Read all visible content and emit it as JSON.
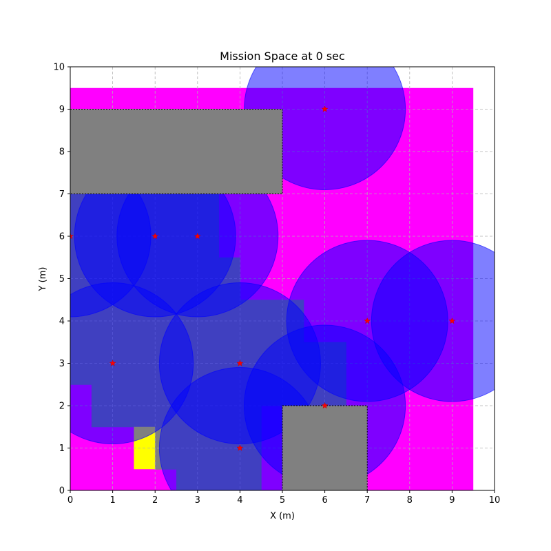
{
  "chart_data": {
    "type": "heatmap",
    "title": "Mission Space at 0 sec",
    "xlabel": "X (m)",
    "ylabel": "Y (m)",
    "xlim": [
      0,
      10
    ],
    "ylim": [
      0,
      10
    ],
    "xticks": [
      0,
      1,
      2,
      3,
      4,
      5,
      6,
      7,
      8,
      9,
      10
    ],
    "yticks": [
      0,
      1,
      2,
      3,
      4,
      5,
      6,
      7,
      8,
      9,
      10
    ],
    "grid": true,
    "cell_size": 0.5,
    "colors": {
      "unexplored": "#ff00ff",
      "explored": "#808080",
      "target_cell": "#ffff00",
      "sensing_circle": "#0000ff",
      "agent_marker": "#ff0000",
      "obstacle": "#808080"
    },
    "mission_space": {
      "x": [
        0,
        9.5
      ],
      "y": [
        0,
        9.5
      ]
    },
    "explored_cells": [
      [
        0,
        6.5
      ],
      [
        0.5,
        6.5
      ],
      [
        1,
        6.5
      ],
      [
        1.5,
        6.5
      ],
      [
        2,
        6.5
      ],
      [
        2.5,
        6.5
      ],
      [
        3,
        6.5
      ],
      [
        0,
        6
      ],
      [
        0.5,
        6
      ],
      [
        1,
        6
      ],
      [
        1.5,
        6
      ],
      [
        2,
        6
      ],
      [
        2.5,
        6
      ],
      [
        3,
        6
      ],
      [
        0,
        5.5
      ],
      [
        0.5,
        5.5
      ],
      [
        1,
        5.5
      ],
      [
        1.5,
        5.5
      ],
      [
        2,
        5.5
      ],
      [
        2.5,
        5.5
      ],
      [
        3,
        5.5
      ],
      [
        0,
        5
      ],
      [
        0.5,
        5
      ],
      [
        1,
        5
      ],
      [
        1.5,
        5
      ],
      [
        2,
        5
      ],
      [
        2.5,
        5
      ],
      [
        3,
        5
      ],
      [
        3.5,
        5
      ],
      [
        0,
        4.5
      ],
      [
        0.5,
        4.5
      ],
      [
        1,
        4.5
      ],
      [
        1.5,
        4.5
      ],
      [
        2,
        4.5
      ],
      [
        2.5,
        4.5
      ],
      [
        3,
        4.5
      ],
      [
        3.5,
        4.5
      ],
      [
        0,
        4
      ],
      [
        0.5,
        4
      ],
      [
        1,
        4
      ],
      [
        1.5,
        4
      ],
      [
        2,
        4
      ],
      [
        2.5,
        4
      ],
      [
        3,
        4
      ],
      [
        3.5,
        4
      ],
      [
        4,
        4
      ],
      [
        4.5,
        4
      ],
      [
        5,
        4
      ],
      [
        0,
        3.5
      ],
      [
        0.5,
        3.5
      ],
      [
        1,
        3.5
      ],
      [
        1.5,
        3.5
      ],
      [
        2,
        3.5
      ],
      [
        2.5,
        3.5
      ],
      [
        3,
        3.5
      ],
      [
        3.5,
        3.5
      ],
      [
        4,
        3.5
      ],
      [
        4.5,
        3.5
      ],
      [
        5,
        3.5
      ],
      [
        0,
        3
      ],
      [
        0.5,
        3
      ],
      [
        1,
        3
      ],
      [
        1.5,
        3
      ],
      [
        2,
        3
      ],
      [
        2.5,
        3
      ],
      [
        3,
        3
      ],
      [
        3.5,
        3
      ],
      [
        4,
        3
      ],
      [
        4.5,
        3
      ],
      [
        5,
        3
      ],
      [
        5.5,
        3
      ],
      [
        6,
        3
      ],
      [
        0,
        2.5
      ],
      [
        0.5,
        2.5
      ],
      [
        1,
        2.5
      ],
      [
        1.5,
        2.5
      ],
      [
        2,
        2.5
      ],
      [
        2.5,
        2.5
      ],
      [
        3,
        2.5
      ],
      [
        3.5,
        2.5
      ],
      [
        4,
        2.5
      ],
      [
        4.5,
        2.5
      ],
      [
        5,
        2.5
      ],
      [
        5.5,
        2.5
      ],
      [
        6,
        2.5
      ],
      [
        0.5,
        2
      ],
      [
        1,
        2
      ],
      [
        1.5,
        2
      ],
      [
        2,
        2
      ],
      [
        2.5,
        2
      ],
      [
        3,
        2
      ],
      [
        3.5,
        2
      ],
      [
        4,
        2
      ],
      [
        4.5,
        2
      ],
      [
        5,
        2
      ],
      [
        5.5,
        2
      ],
      [
        6,
        2
      ],
      [
        0.5,
        1.5
      ],
      [
        1,
        1.5
      ],
      [
        1.5,
        1.5
      ],
      [
        2,
        1.5
      ],
      [
        2.5,
        1.5
      ],
      [
        3,
        1.5
      ],
      [
        3.5,
        1.5
      ],
      [
        4,
        1.5
      ],
      [
        1.5,
        1
      ],
      [
        2,
        1
      ],
      [
        2.5,
        1
      ],
      [
        3,
        1
      ],
      [
        3.5,
        1
      ],
      [
        4,
        1
      ],
      [
        2,
        0.5
      ],
      [
        2.5,
        0.5
      ],
      [
        3,
        0.5
      ],
      [
        3.5,
        0.5
      ],
      [
        4,
        0.5
      ],
      [
        2.5,
        0
      ],
      [
        3,
        0
      ],
      [
        3.5,
        0
      ],
      [
        4,
        0
      ]
    ],
    "target_cells": [
      [
        1.5,
        0.5
      ],
      [
        1.5,
        1
      ]
    ],
    "obstacles": [
      {
        "x": 0,
        "y": 7,
        "w": 5,
        "h": 2
      },
      {
        "x": 5,
        "y": 0,
        "w": 2,
        "h": 2
      }
    ],
    "agents": [
      {
        "x": 6,
        "y": 9
      },
      {
        "x": 0,
        "y": 6
      },
      {
        "x": 2,
        "y": 6
      },
      {
        "x": 3,
        "y": 6
      },
      {
        "x": 1,
        "y": 3
      },
      {
        "x": 4,
        "y": 3
      },
      {
        "x": 4,
        "y": 1
      },
      {
        "x": 6,
        "y": 2
      },
      {
        "x": 7,
        "y": 4
      },
      {
        "x": 9,
        "y": 4
      }
    ],
    "sensing_radius": 1.9
  }
}
